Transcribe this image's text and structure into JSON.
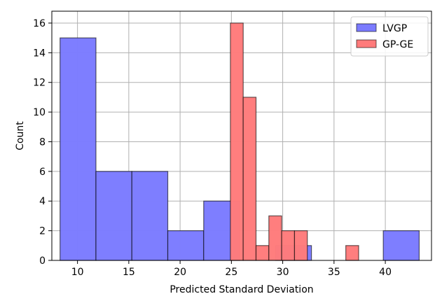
{
  "chart_data": {
    "type": "bar",
    "title": "",
    "xlabel": "Predicted Standard Deviation",
    "ylabel": "Count",
    "xlim": [
      7.5,
      44.5
    ],
    "ylim": [
      0,
      16.8
    ],
    "xticks": [
      10,
      15,
      20,
      25,
      30,
      35,
      40
    ],
    "yticks": [
      0,
      2,
      4,
      6,
      8,
      10,
      12,
      14,
      16
    ],
    "grid": true,
    "legend_position": "top-right",
    "series": [
      {
        "name": "LVGP",
        "color": "#7b7bff",
        "edge_color": "#000000",
        "bins": [
          {
            "x0": 8.3,
            "x1": 11.8,
            "count": 15
          },
          {
            "x0": 11.8,
            "x1": 15.3,
            "count": 6
          },
          {
            "x0": 15.3,
            "x1": 18.8,
            "count": 6
          },
          {
            "x0": 18.8,
            "x1": 22.3,
            "count": 2
          },
          {
            "x0": 22.3,
            "x1": 25.8,
            "count": 4
          },
          {
            "x0": 25.8,
            "x1": 29.3,
            "count": 0
          },
          {
            "x0": 29.3,
            "x1": 32.8,
            "count": 1
          },
          {
            "x0": 32.8,
            "x1": 36.3,
            "count": 0
          },
          {
            "x0": 36.3,
            "x1": 39.8,
            "count": 0
          },
          {
            "x0": 39.8,
            "x1": 43.3,
            "count": 2
          }
        ]
      },
      {
        "name": "GP-GE",
        "color": "#ff7b7b",
        "edge_color": "#000000",
        "bins": [
          {
            "x0": 24.9,
            "x1": 26.15,
            "count": 16
          },
          {
            "x0": 26.15,
            "x1": 27.4,
            "count": 11
          },
          {
            "x0": 27.4,
            "x1": 28.65,
            "count": 1
          },
          {
            "x0": 28.65,
            "x1": 29.9,
            "count": 3
          },
          {
            "x0": 29.9,
            "x1": 31.15,
            "count": 2
          },
          {
            "x0": 31.15,
            "x1": 32.4,
            "count": 2
          },
          {
            "x0": 32.4,
            "x1": 33.65,
            "count": 0
          },
          {
            "x0": 33.65,
            "x1": 34.9,
            "count": 0
          },
          {
            "x0": 34.9,
            "x1": 36.15,
            "count": 0
          },
          {
            "x0": 36.15,
            "x1": 37.4,
            "count": 1
          }
        ]
      }
    ]
  }
}
